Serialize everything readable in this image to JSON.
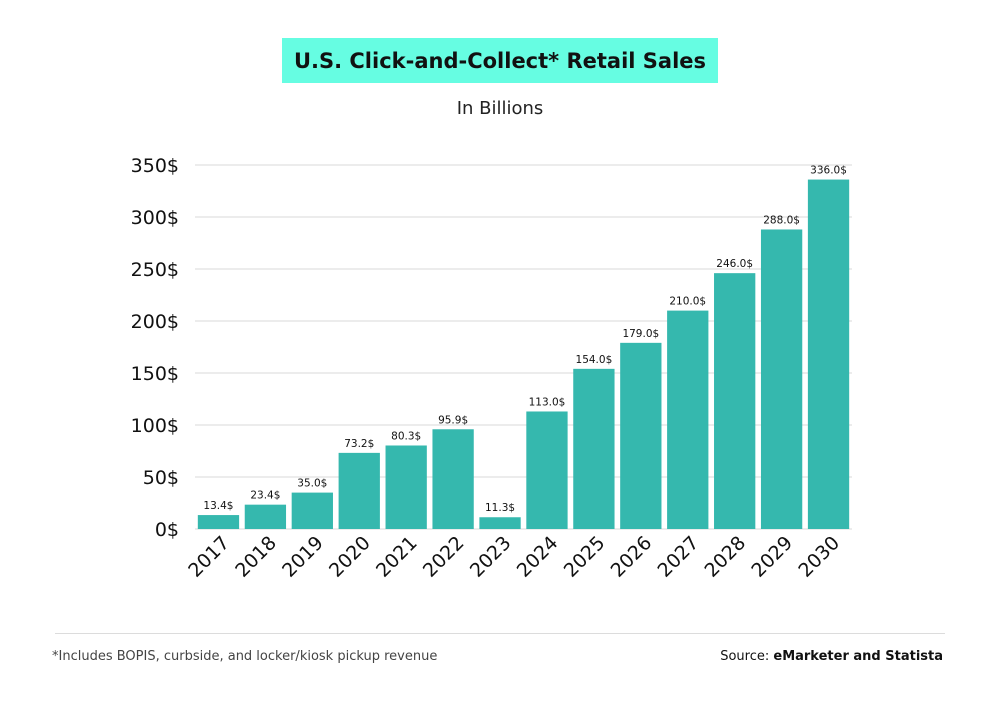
{
  "colors": {
    "title_highlight": "#66fde2",
    "bar": "#35b8ae",
    "grid": "#d9d9d9",
    "text": "#111111"
  },
  "chart_data": {
    "type": "bar",
    "title": "U.S. Click-and-Collect* Retail Sales",
    "subtitle": "In Billions",
    "categories": [
      "2017",
      "2018",
      "2019",
      "2020",
      "2021",
      "2022",
      "2023",
      "2024",
      "2025",
      "2026",
      "2027",
      "2028",
      "2029",
      "2030"
    ],
    "values": [
      13.4,
      23.4,
      35.0,
      73.2,
      80.3,
      95.9,
      11.3,
      113.0,
      154.0,
      179.0,
      210.0,
      246.0,
      288.0,
      336.0
    ],
    "data_labels": [
      "13.4$",
      "23.4$",
      "35.0$",
      "73.2$",
      "80.3$",
      "95.9$",
      "11.3$",
      "113.0$",
      "154.0$",
      "179.0$",
      "210.0$",
      "246.0$",
      "288.0$",
      "336.0$"
    ],
    "ylim": [
      0,
      350
    ],
    "yticks": [
      0,
      50,
      100,
      150,
      200,
      250,
      300,
      350
    ],
    "ytick_labels": [
      "0$",
      "50$",
      "100$",
      "150$",
      "200$",
      "250$",
      "300$",
      "350$"
    ],
    "xlabel": "",
    "ylabel": "",
    "grid": true,
    "legend": "none",
    "x_tick_rotation_deg": -45
  },
  "footer": {
    "footnote": "*Includes BOPIS, curbside, and locker/kiosk pickup revenue",
    "source_prefix": "Source: ",
    "source_name": "eMarketer and Statista"
  }
}
